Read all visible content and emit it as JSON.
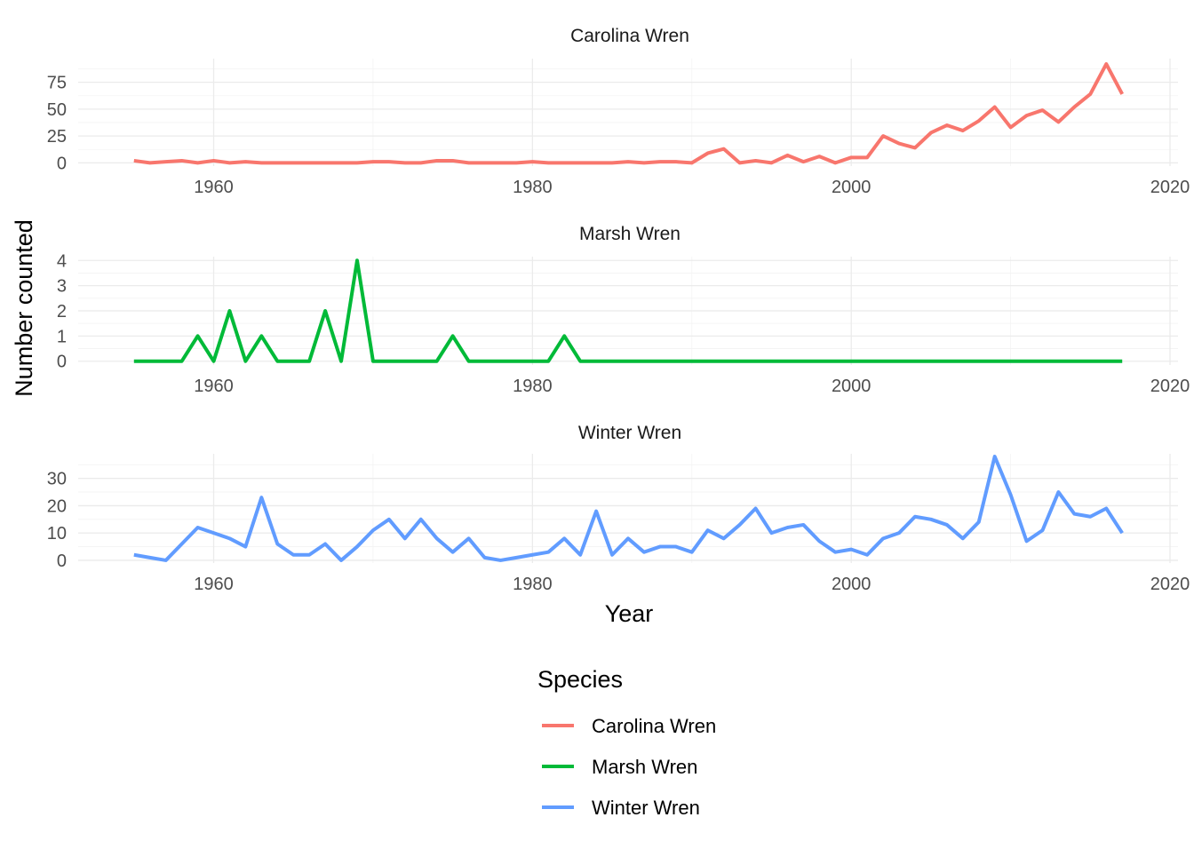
{
  "chart_data": {
    "type": "line",
    "xlabel": "Year",
    "ylabel": "Number counted",
    "xlim": [
      1951.5,
      2020.5
    ],
    "x_ticks": [
      1960,
      1980,
      2000,
      2020
    ],
    "x_tick_labels": [
      "1960",
      "1980",
      "2000",
      "2020"
    ],
    "grid": true,
    "legend_position": "bottom",
    "legend": {
      "title": "Species",
      "entries": [
        "Carolina Wren",
        "Marsh Wren",
        "Winter Wren"
      ]
    },
    "x": [
      1955,
      1956,
      1957,
      1958,
      1959,
      1960,
      1961,
      1962,
      1963,
      1964,
      1965,
      1966,
      1967,
      1968,
      1969,
      1970,
      1971,
      1972,
      1973,
      1974,
      1975,
      1976,
      1977,
      1978,
      1979,
      1980,
      1981,
      1982,
      1983,
      1984,
      1985,
      1986,
      1987,
      1988,
      1989,
      1990,
      1991,
      1992,
      1993,
      1994,
      1995,
      1996,
      1997,
      1998,
      1999,
      2000,
      2001,
      2002,
      2003,
      2004,
      2005,
      2006,
      2007,
      2008,
      2009,
      2010,
      2011,
      2012,
      2013,
      2014,
      2015,
      2016,
      2017
    ],
    "panels": [
      {
        "strip": "Carolina Wren",
        "color": "#F8766D",
        "ylim": [
          -3,
          97
        ],
        "y_ticks": [
          0,
          25,
          50,
          75
        ],
        "y_tick_labels": [
          "0",
          "25",
          "50",
          "75"
        ],
        "values": [
          2,
          0,
          1,
          2,
          0,
          2,
          0,
          1,
          0,
          0,
          0,
          0,
          0,
          0,
          0,
          1,
          1,
          0,
          0,
          2,
          2,
          0,
          0,
          0,
          0,
          1,
          0,
          0,
          0,
          0,
          0,
          1,
          0,
          1,
          1,
          0,
          9,
          13,
          0,
          2,
          0,
          7,
          1,
          6,
          0,
          5,
          5,
          25,
          18,
          14,
          28,
          35,
          30,
          39,
          52,
          33,
          44,
          49,
          38,
          52,
          64,
          92,
          64
        ]
      },
      {
        "strip": "Marsh Wren",
        "color": "#00BA38",
        "ylim": [
          -0.15,
          4.15
        ],
        "y_ticks": [
          0,
          1,
          2,
          3,
          4
        ],
        "y_tick_labels": [
          "0",
          "1",
          "2",
          "3",
          "4"
        ],
        "values": [
          0,
          0,
          0,
          0,
          1,
          0,
          2,
          0,
          1,
          0,
          0,
          0,
          2,
          0,
          4,
          0,
          0,
          0,
          0,
          0,
          1,
          0,
          0,
          0,
          0,
          0,
          0,
          1,
          0,
          0,
          0,
          0,
          0,
          0,
          0,
          0,
          0,
          0,
          0,
          0,
          0,
          0,
          0,
          0,
          0,
          0,
          0,
          0,
          0,
          0,
          0,
          0,
          0,
          0,
          0,
          0,
          0,
          0,
          0,
          0,
          0,
          0,
          0
        ]
      },
      {
        "strip": "Winter Wren",
        "color": "#619CFF",
        "ylim": [
          -1,
          39
        ],
        "y_ticks": [
          0,
          10,
          20,
          30
        ],
        "y_tick_labels": [
          "0",
          "10",
          "20",
          "30"
        ],
        "values": [
          2,
          1,
          0,
          6,
          12,
          10,
          8,
          5,
          23,
          6,
          2,
          2,
          6,
          0,
          5,
          11,
          15,
          8,
          15,
          8,
          3,
          8,
          1,
          0,
          1,
          2,
          3,
          8,
          2,
          18,
          2,
          8,
          3,
          5,
          5,
          3,
          11,
          8,
          13,
          19,
          10,
          12,
          13,
          7,
          3,
          4,
          2,
          8,
          10,
          16,
          15,
          13,
          8,
          14,
          38,
          24,
          7,
          11,
          25,
          17,
          16,
          19,
          10
        ]
      }
    ]
  }
}
